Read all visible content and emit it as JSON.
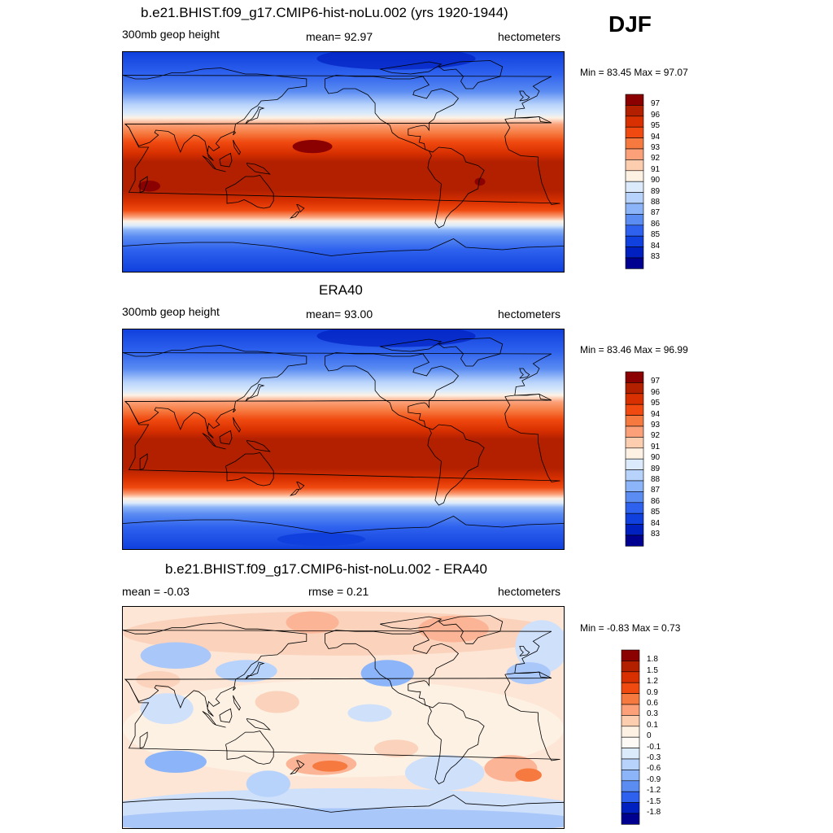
{
  "season": "DJF",
  "panels": [
    {
      "title": "b.e21.BHIST.f09_g17.CMIP6-hist-noLu.002 (yrs 1920-1944)",
      "left": "300mb geop height",
      "center": "mean=  92.97",
      "right": "hectometers",
      "minmax": "Min =  83.45 Max =  97.07",
      "map_type": "absolute",
      "colorbar": {
        "labels": [
          "97",
          "96",
          "95",
          "94",
          "93",
          "92",
          "91",
          "90",
          "89",
          "88",
          "87",
          "86",
          "85",
          "84",
          "83"
        ],
        "colors": [
          "#8b0000",
          "#b22000",
          "#d83000",
          "#f04a10",
          "#f67a40",
          "#fba078",
          "#fdcdb0",
          "#fdf1e4",
          "#dcebfb",
          "#b8d3fb",
          "#8cb4f8",
          "#5b8cf2",
          "#2e62ee",
          "#1040dd",
          "#0020c0",
          "#000090"
        ]
      }
    },
    {
      "title": "ERA40",
      "left": "300mb geop height",
      "center": "mean=  93.00",
      "right": "hectometers",
      "minmax": "Min =  83.46 Max =  96.99",
      "map_type": "absolute",
      "colorbar": {
        "labels": [
          "97",
          "96",
          "95",
          "94",
          "93",
          "92",
          "91",
          "90",
          "89",
          "88",
          "87",
          "86",
          "85",
          "84",
          "83"
        ],
        "colors": [
          "#8b0000",
          "#b22000",
          "#d83000",
          "#f04a10",
          "#f67a40",
          "#fba078",
          "#fdcdb0",
          "#fdf1e4",
          "#dcebfb",
          "#b8d3fb",
          "#8cb4f8",
          "#5b8cf2",
          "#2e62ee",
          "#1040dd",
          "#0020c0",
          "#000090"
        ]
      }
    },
    {
      "title": "b.e21.BHIST.f09_g17.CMIP6-hist-noLu.002 - ERA40",
      "left": "mean =  -0.03",
      "center": "rmse =   0.21",
      "right": "hectometers",
      "minmax": "Min =  -0.83 Max =   0.73",
      "map_type": "difference",
      "colorbar": {
        "labels": [
          "1.8",
          "1.5",
          "1.2",
          "0.9",
          "0.6",
          "0.3",
          "0.1",
          "0",
          "-0.1",
          "-0.3",
          "-0.6",
          "-0.9",
          "-1.2",
          "-1.5",
          "-1.8"
        ],
        "colors": [
          "#8b0000",
          "#b22000",
          "#d83000",
          "#f04a10",
          "#f67a40",
          "#fba078",
          "#fdcdb0",
          "#fdf1e4",
          "#fdfaf6",
          "#dcebfb",
          "#b8d3fb",
          "#8cb4f8",
          "#5b8cf2",
          "#2e62ee",
          "#0020c0",
          "#000090"
        ]
      }
    }
  ]
}
